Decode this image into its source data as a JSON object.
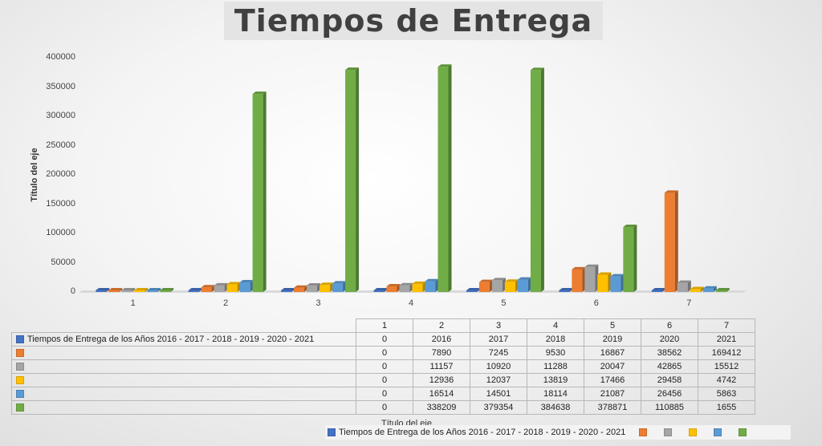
{
  "chart_data": {
    "type": "bar",
    "title": "Tiempos de Entrega",
    "xlabel": "Título del eje",
    "ylabel": "Título del eje",
    "ylim": [
      0,
      400000
    ],
    "yticks": [
      "0",
      "50000",
      "100000",
      "150000",
      "200000",
      "250000",
      "300000",
      "350000",
      "400000"
    ],
    "categories": [
      "1",
      "2",
      "3",
      "4",
      "5",
      "6",
      "7"
    ],
    "series": [
      {
        "name": "Tiempos de Entrega de los Años 2016 - 2017 - 2018 - 2019 - 2020 - 2021",
        "color": "#4472c4",
        "values": [
          0,
          2016,
          2017,
          2018,
          2019,
          2020,
          2021
        ]
      },
      {
        "name": "",
        "color": "#ed7d31",
        "values": [
          0,
          7890,
          7245,
          9530,
          16867,
          38562,
          169412
        ]
      },
      {
        "name": "",
        "color": "#a5a5a5",
        "values": [
          0,
          11157,
          10920,
          11288,
          20047,
          42865,
          15512
        ]
      },
      {
        "name": "",
        "color": "#ffc000",
        "values": [
          0,
          12936,
          12037,
          13819,
          17466,
          29458,
          4742
        ]
      },
      {
        "name": "",
        "color": "#5b9bd5",
        "values": [
          0,
          16514,
          14501,
          18114,
          21087,
          26456,
          5863
        ]
      },
      {
        "name": "",
        "color": "#70ad47",
        "values": [
          0,
          338209,
          379354,
          384638,
          378871,
          110885,
          1655
        ]
      }
    ],
    "legend": "bottom",
    "grid": false
  }
}
